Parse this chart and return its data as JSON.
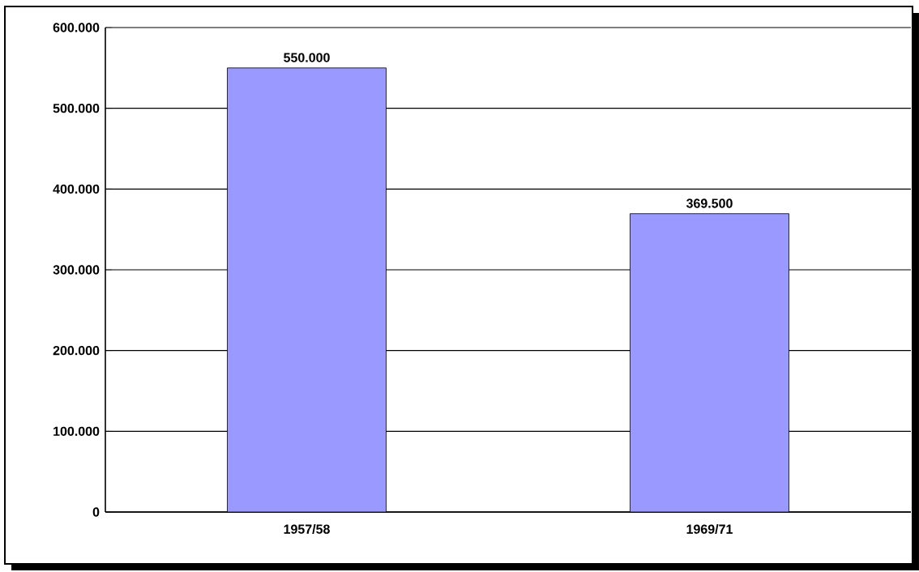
{
  "chart_data": {
    "type": "bar",
    "categories": [
      "1957/58",
      "1969/71"
    ],
    "values": [
      550000,
      369500
    ],
    "value_labels": [
      "550.000",
      "369.500"
    ],
    "color": "#9999ff",
    "ylim": [
      0,
      600000
    ],
    "yticks": [
      {
        "value": 0,
        "label": "0"
      },
      {
        "value": 100000,
        "label": "100.000"
      },
      {
        "value": 200000,
        "label": "200.000"
      },
      {
        "value": 300000,
        "label": "300.000"
      },
      {
        "value": 400000,
        "label": "400.000"
      },
      {
        "value": 500000,
        "label": "500.000"
      },
      {
        "value": 600000,
        "label": "600.000"
      }
    ],
    "grid": "y"
  }
}
